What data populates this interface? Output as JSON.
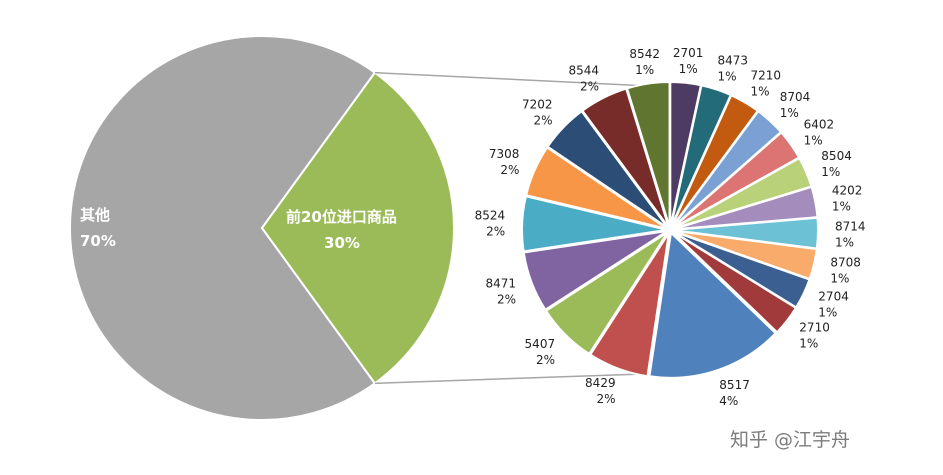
{
  "chart_data": {
    "type": "pie",
    "subtype": "pie-of-pie",
    "title": "",
    "main_pie": {
      "slices": [
        {
          "label": "其他",
          "percent_label": "70%",
          "value": 70,
          "color": "#a6a6a6"
        },
        {
          "label": "前20位进口商品",
          "percent_label": "30%",
          "value": 30,
          "color": "#9bbb59"
        }
      ]
    },
    "secondary_pie": {
      "slices": [
        {
          "label": "2701",
          "percent_label": "1%",
          "value": 1.0,
          "color": "#4e3b63"
        },
        {
          "label": "8473",
          "percent_label": "1%",
          "value": 1.0,
          "color": "#236b79"
        },
        {
          "label": "7210",
          "percent_label": "1%",
          "value": 1.0,
          "color": "#c25b10"
        },
        {
          "label": "8704",
          "percent_label": "1%",
          "value": 1.0,
          "color": "#7aa0d4"
        },
        {
          "label": "6402",
          "percent_label": "1%",
          "value": 1.0,
          "color": "#db7473"
        },
        {
          "label": "8504",
          "percent_label": "1%",
          "value": 1.0,
          "color": "#b9d179"
        },
        {
          "label": "4202",
          "percent_label": "1%",
          "value": 1.0,
          "color": "#a48cbc"
        },
        {
          "label": "8714",
          "percent_label": "1%",
          "value": 1.0,
          "color": "#6cc1d4"
        },
        {
          "label": "8708",
          "percent_label": "1%",
          "value": 1.0,
          "color": "#f8ab6b"
        },
        {
          "label": "2704",
          "percent_label": "1%",
          "value": 1.0,
          "color": "#3b5f90"
        },
        {
          "label": "2710",
          "percent_label": "1%",
          "value": 1.0,
          "color": "#a13b3b"
        },
        {
          "label": "8517",
          "percent_label": "4%",
          "value": 4.5,
          "color": "#4f81bd"
        },
        {
          "label": "8429",
          "percent_label": "2%",
          "value": 2.0,
          "color": "#c0504d"
        },
        {
          "label": "5407",
          "percent_label": "2%",
          "value": 2.0,
          "color": "#9bbb59"
        },
        {
          "label": "8471",
          "percent_label": "2%",
          "value": 2.0,
          "color": "#8064a2"
        },
        {
          "label": "8524",
          "percent_label": "2%",
          "value": 1.8,
          "color": "#4bacc6"
        },
        {
          "label": "7308",
          "percent_label": "2%",
          "value": 1.7,
          "color": "#f79646"
        },
        {
          "label": "7202",
          "percent_label": "2%",
          "value": 1.6,
          "color": "#2c4d75"
        },
        {
          "label": "8544",
          "percent_label": "2%",
          "value": 1.6,
          "color": "#772c2a"
        },
        {
          "label": "8542",
          "percent_label": "1%",
          "value": 1.4,
          "color": "#5f7530"
        }
      ]
    },
    "legend": "none",
    "connector_color": "#a6a6a6"
  },
  "watermark": "知乎 @江宇舟"
}
